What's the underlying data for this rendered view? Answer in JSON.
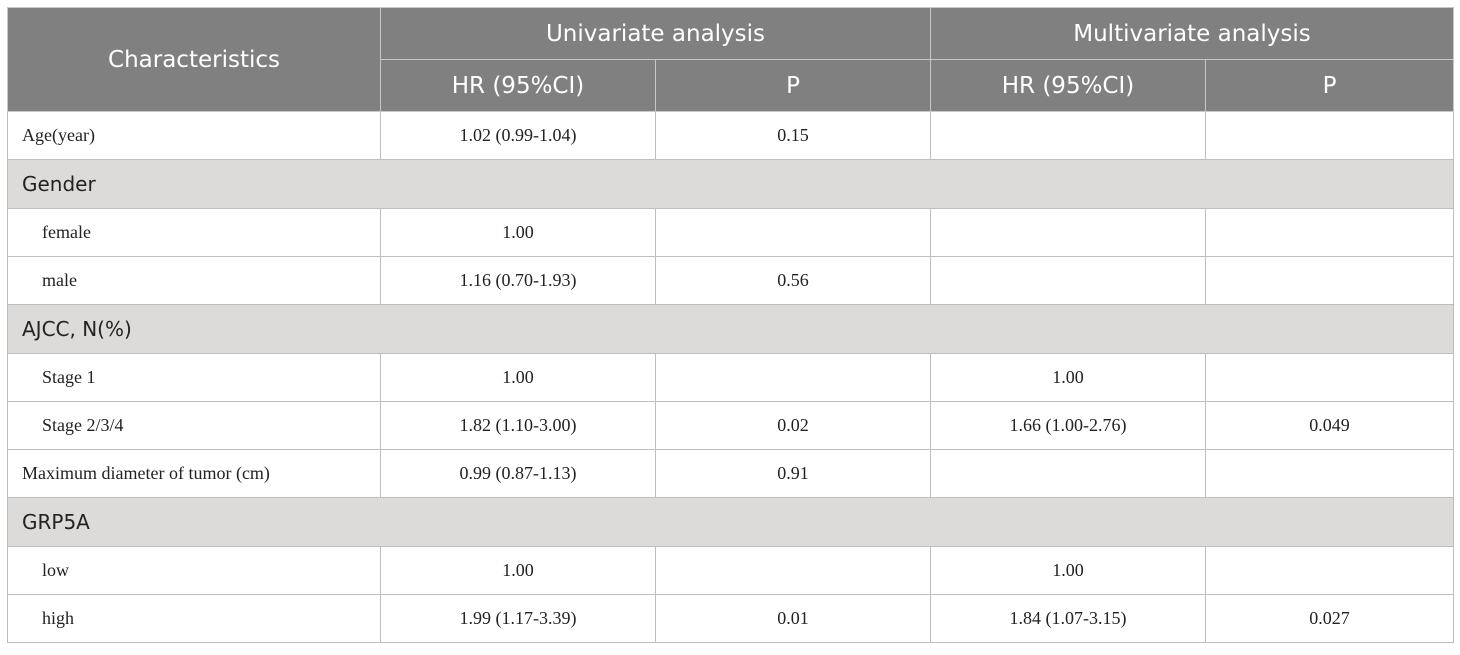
{
  "header": {
    "characteristics": "Characteristics",
    "univariate": "Univariate analysis",
    "multivariate": "Multivariate analysis",
    "uni_hr": "HR (95%CI)",
    "uni_p": "P",
    "multi_hr": "HR (95%CI)",
    "multi_p": "P"
  },
  "rows": {
    "age": {
      "label": "Age(year)",
      "uni_hr": "1.02 (0.99-1.04)",
      "uni_p": "0.15",
      "multi_hr": "",
      "multi_p": ""
    },
    "gender_group": "Gender",
    "female": {
      "label": "female",
      "uni_hr": "1.00",
      "uni_p": "",
      "multi_hr": "",
      "multi_p": ""
    },
    "male": {
      "label": "male",
      "uni_hr": "1.16 (0.70-1.93)",
      "uni_p": "0.56",
      "multi_hr": "",
      "multi_p": ""
    },
    "ajcc_group": "AJCC, N(%)",
    "stage1": {
      "label": "Stage 1",
      "uni_hr": "1.00",
      "uni_p": "",
      "multi_hr": "1.00",
      "multi_p": ""
    },
    "stage234": {
      "label": "Stage 2/3/4",
      "uni_hr": "1.82 (1.10-3.00)",
      "uni_p": "0.02",
      "multi_hr": "1.66 (1.00-2.76)",
      "multi_p": "0.049"
    },
    "diameter": {
      "label": "Maximum diameter of tumor (cm)",
      "uni_hr": "0.99 (0.87-1.13)",
      "uni_p": "0.91",
      "multi_hr": "",
      "multi_p": ""
    },
    "grp5a_group": "GRP5A",
    "low": {
      "label": "low",
      "uni_hr": "1.00",
      "uni_p": "",
      "multi_hr": "1.00",
      "multi_p": ""
    },
    "high": {
      "label": "high",
      "uni_hr": "1.99 (1.17-3.39)",
      "uni_p": "0.01",
      "multi_hr": "1.84 (1.07-3.15)",
      "multi_p": "0.027"
    }
  }
}
